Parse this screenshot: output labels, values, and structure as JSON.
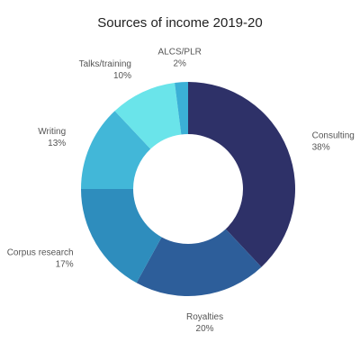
{
  "chart_data": {
    "type": "pie",
    "title": "Sources of income 2019-20",
    "donut": true,
    "slices": [
      {
        "label": "Consulting",
        "value": 38,
        "value_label": "38%",
        "color": "#2e3168"
      },
      {
        "label": "Royalties",
        "value": 20,
        "value_label": "20%",
        "color": "#2d5e9a"
      },
      {
        "label": "Corpus research",
        "value": 17,
        "value_label": "17%",
        "color": "#2e8dbd"
      },
      {
        "label": "Writing",
        "value": 13,
        "value_label": "13%",
        "color": "#42b7d8"
      },
      {
        "label": "Talks/training",
        "value": 10,
        "value_label": "10%",
        "color": "#6ae4ea"
      },
      {
        "label": "ALCS/PLR",
        "value": 2,
        "value_label": "2%",
        "color": "#3bb0d6"
      }
    ]
  }
}
